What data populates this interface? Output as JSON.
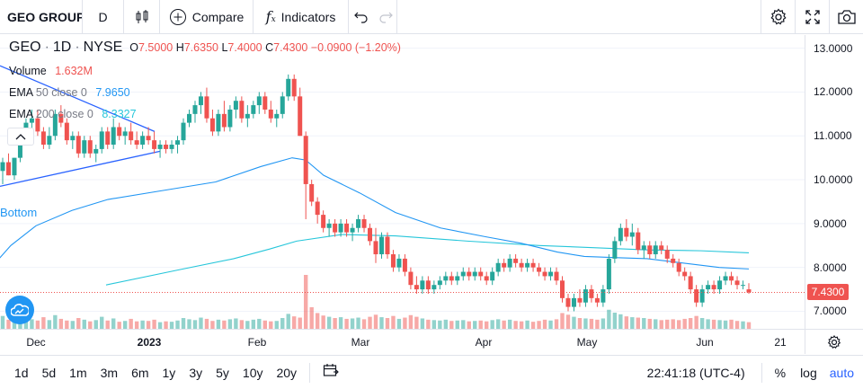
{
  "toolbar": {
    "symbol": "GEO GROUP",
    "interval": "D",
    "compare_label": "Compare",
    "indicators_label": "Indicators"
  },
  "legend": {
    "symbol": "GEO",
    "interval": "1D",
    "exchange": "NYSE",
    "open_label": "O",
    "open": "7.5000",
    "high_label": "H",
    "high": "7.6350",
    "low_label": "L",
    "low": "7.4000",
    "close_label": "C",
    "close": "7.4300",
    "change": "−0.0900 (−1.20%)",
    "volume_name": "Volume",
    "volume_value": "1.632M",
    "ema50_name": "EMA",
    "ema50_params": "50 close 0",
    "ema50_value": "7.9650",
    "ema200_name": "EMA",
    "ema200_params": "200 close 0",
    "ema200_value": "8.3327",
    "drawing_label": "Bottom"
  },
  "price_axis": {
    "ticks": [
      "13.0000",
      "12.0000",
      "11.0000",
      "10.0000",
      "9.0000",
      "8.0000",
      "7.0000"
    ],
    "last_price": "7.4300"
  },
  "time_axis": {
    "ticks": [
      {
        "label": "Dec",
        "bold": false
      },
      {
        "label": "2023",
        "bold": true
      },
      {
        "label": "Feb",
        "bold": false
      },
      {
        "label": "Mar",
        "bold": false
      },
      {
        "label": "Apr",
        "bold": false
      },
      {
        "label": "May",
        "bold": false
      },
      {
        "label": "Jun",
        "bold": false
      },
      {
        "label": "21",
        "bold": false
      }
    ]
  },
  "bottom_bar": {
    "ranges": [
      "1d",
      "5d",
      "1m",
      "3m",
      "6m",
      "1y",
      "3y",
      "5y",
      "10y",
      "20y"
    ],
    "time": "22:41:18 (UTC-4)",
    "percent_label": "%",
    "log_label": "log",
    "auto_label": "auto"
  },
  "colors": {
    "up": "#26a69a",
    "down": "#ef5350",
    "ema50": "#2196f3",
    "ema200": "#26c6da",
    "trendline": "#2962ff",
    "accent": "#2962ff"
  },
  "chart_data": {
    "type": "candlestick",
    "ylim": [
      6.6,
      13.3
    ],
    "ohlc": [
      [
        10.2,
        10.5,
        9.9,
        10.4
      ],
      [
        10.4,
        10.6,
        10.1,
        10.1
      ],
      [
        10.1,
        10.5,
        10.0,
        10.5
      ],
      [
        10.5,
        11.1,
        10.4,
        10.9
      ],
      [
        10.9,
        11.4,
        10.8,
        11.3
      ],
      [
        11.3,
        11.6,
        11.1,
        11.4
      ],
      [
        11.4,
        11.6,
        11.0,
        11.1
      ],
      [
        11.1,
        11.2,
        10.7,
        10.8
      ],
      [
        10.8,
        11.2,
        10.7,
        11.0
      ],
      [
        11.0,
        11.6,
        10.9,
        11.5
      ],
      [
        11.5,
        11.7,
        11.2,
        11.3
      ],
      [
        11.3,
        11.4,
        10.8,
        10.9
      ],
      [
        10.9,
        11.1,
        10.7,
        11.0
      ],
      [
        11.0,
        11.1,
        10.5,
        10.6
      ],
      [
        10.6,
        11.0,
        10.5,
        10.9
      ],
      [
        10.9,
        11.0,
        10.5,
        10.6
      ],
      [
        10.6,
        10.8,
        10.4,
        10.7
      ],
      [
        10.7,
        11.2,
        10.6,
        11.1
      ],
      [
        11.1,
        11.2,
        10.7,
        10.8
      ],
      [
        10.8,
        11.4,
        10.7,
        11.2
      ],
      [
        11.2,
        11.3,
        10.9,
        11.0
      ],
      [
        11.0,
        11.2,
        10.8,
        11.1
      ],
      [
        11.1,
        11.3,
        10.8,
        10.9
      ],
      [
        10.9,
        11.1,
        10.7,
        10.8
      ],
      [
        10.8,
        11.1,
        10.7,
        11.0
      ],
      [
        11.0,
        11.2,
        10.8,
        10.9
      ],
      [
        10.9,
        11.1,
        10.6,
        10.7
      ],
      [
        10.7,
        10.9,
        10.5,
        10.8
      ],
      [
        10.8,
        10.9,
        10.6,
        10.7
      ],
      [
        10.7,
        10.9,
        10.6,
        10.8
      ],
      [
        10.8,
        11.0,
        10.6,
        10.9
      ],
      [
        10.9,
        11.4,
        10.8,
        11.3
      ],
      [
        11.3,
        11.6,
        11.2,
        11.5
      ],
      [
        11.5,
        11.8,
        11.3,
        11.7
      ],
      [
        11.7,
        12.0,
        11.5,
        11.9
      ],
      [
        11.9,
        12.1,
        11.3,
        11.4
      ],
      [
        11.4,
        11.6,
        11.0,
        11.1
      ],
      [
        11.1,
        11.6,
        11.0,
        11.5
      ],
      [
        11.5,
        11.8,
        11.1,
        11.2
      ],
      [
        11.2,
        11.7,
        11.1,
        11.6
      ],
      [
        11.6,
        11.9,
        11.4,
        11.8
      ],
      [
        11.8,
        11.9,
        11.3,
        11.4
      ],
      [
        11.4,
        11.7,
        11.2,
        11.5
      ],
      [
        11.5,
        11.8,
        11.4,
        11.7
      ],
      [
        11.7,
        12.0,
        11.5,
        11.9
      ],
      [
        11.9,
        12.0,
        11.5,
        11.6
      ],
      [
        11.6,
        11.8,
        11.3,
        11.4
      ],
      [
        11.4,
        11.6,
        11.2,
        11.5
      ],
      [
        11.5,
        12.0,
        11.4,
        11.9
      ],
      [
        11.9,
        12.4,
        11.8,
        12.3
      ],
      [
        12.3,
        12.4,
        11.8,
        11.9
      ],
      [
        11.9,
        12.1,
        11.0,
        11.0
      ],
      [
        11.0,
        11.1,
        9.1,
        9.9
      ],
      [
        9.9,
        10.0,
        9.4,
        9.5
      ],
      [
        9.5,
        9.6,
        9.0,
        9.2
      ],
      [
        9.2,
        9.3,
        8.8,
        8.9
      ],
      [
        8.9,
        9.1,
        8.7,
        9.0
      ],
      [
        9.0,
        9.1,
        8.7,
        8.8
      ],
      [
        8.8,
        9.1,
        8.7,
        9.0
      ],
      [
        9.0,
        9.1,
        8.7,
        8.8
      ],
      [
        8.8,
        9.0,
        8.6,
        8.9
      ],
      [
        8.9,
        9.2,
        8.8,
        9.1
      ],
      [
        9.1,
        9.2,
        8.8,
        8.9
      ],
      [
        8.9,
        9.0,
        8.5,
        8.6
      ],
      [
        8.6,
        8.9,
        8.1,
        8.3
      ],
      [
        8.3,
        8.8,
        8.2,
        8.7
      ],
      [
        8.7,
        8.8,
        8.2,
        8.3
      ],
      [
        8.3,
        8.4,
        7.9,
        8.0
      ],
      [
        8.0,
        8.3,
        7.9,
        8.2
      ],
      [
        8.2,
        8.3,
        7.8,
        7.9
      ],
      [
        7.9,
        8.0,
        7.5,
        7.6
      ],
      [
        7.6,
        7.8,
        7.4,
        7.5
      ],
      [
        7.5,
        7.8,
        7.4,
        7.7
      ],
      [
        7.7,
        7.8,
        7.4,
        7.5
      ],
      [
        7.5,
        7.7,
        7.4,
        7.6
      ],
      [
        7.6,
        7.8,
        7.5,
        7.7
      ],
      [
        7.7,
        7.9,
        7.6,
        7.8
      ],
      [
        7.8,
        7.9,
        7.6,
        7.7
      ],
      [
        7.7,
        7.9,
        7.6,
        7.8
      ],
      [
        7.8,
        8.0,
        7.7,
        7.9
      ],
      [
        7.9,
        8.0,
        7.7,
        7.8
      ],
      [
        7.8,
        8.0,
        7.7,
        7.9
      ],
      [
        7.9,
        8.0,
        7.7,
        7.8
      ],
      [
        7.8,
        7.9,
        7.6,
        7.7
      ],
      [
        7.7,
        8.0,
        7.6,
        7.9
      ],
      [
        7.9,
        8.2,
        7.8,
        8.1
      ],
      [
        8.1,
        8.2,
        7.9,
        8.0
      ],
      [
        8.0,
        8.3,
        7.9,
        8.2
      ],
      [
        8.2,
        8.3,
        8.0,
        8.1
      ],
      [
        8.1,
        8.2,
        7.9,
        8.0
      ],
      [
        8.0,
        8.2,
        7.9,
        8.1
      ],
      [
        8.1,
        8.2,
        7.9,
        8.0
      ],
      [
        8.0,
        8.1,
        7.8,
        7.9
      ],
      [
        7.9,
        8.0,
        7.7,
        7.8
      ],
      [
        7.8,
        8.0,
        7.7,
        7.9
      ],
      [
        7.9,
        8.0,
        7.6,
        7.7
      ],
      [
        7.7,
        7.8,
        7.2,
        7.3
      ],
      [
        7.3,
        7.4,
        7.0,
        7.1
      ],
      [
        7.1,
        7.4,
        7.0,
        7.3
      ],
      [
        7.3,
        7.5,
        7.1,
        7.2
      ],
      [
        7.2,
        7.6,
        7.1,
        7.5
      ],
      [
        7.5,
        7.6,
        7.2,
        7.3
      ],
      [
        7.3,
        7.4,
        7.1,
        7.2
      ],
      [
        7.2,
        7.6,
        7.1,
        7.5
      ],
      [
        7.5,
        8.3,
        7.4,
        8.2
      ],
      [
        8.2,
        8.7,
        8.1,
        8.6
      ],
      [
        8.6,
        9.0,
        8.5,
        8.9
      ],
      [
        8.9,
        9.1,
        8.6,
        8.7
      ],
      [
        8.7,
        9.0,
        8.5,
        8.8
      ],
      [
        8.8,
        8.9,
        8.3,
        8.4
      ],
      [
        8.4,
        8.6,
        8.2,
        8.5
      ],
      [
        8.5,
        8.6,
        8.2,
        8.3
      ],
      [
        8.3,
        8.6,
        8.2,
        8.5
      ],
      [
        8.5,
        8.6,
        8.3,
        8.4
      ],
      [
        8.4,
        8.5,
        8.1,
        8.2
      ],
      [
        8.2,
        8.3,
        8.0,
        8.1
      ],
      [
        8.1,
        8.2,
        7.8,
        7.9
      ],
      [
        7.9,
        8.0,
        7.7,
        7.8
      ],
      [
        7.8,
        7.9,
        7.4,
        7.5
      ],
      [
        7.5,
        7.6,
        7.1,
        7.2
      ],
      [
        7.2,
        7.6,
        7.1,
        7.5
      ],
      [
        7.5,
        7.7,
        7.4,
        7.6
      ],
      [
        7.6,
        7.7,
        7.4,
        7.5
      ],
      [
        7.5,
        7.8,
        7.4,
        7.7
      ],
      [
        7.7,
        7.9,
        7.6,
        7.8
      ],
      [
        7.8,
        7.9,
        7.6,
        7.7
      ],
      [
        7.7,
        7.8,
        7.5,
        7.6
      ],
      [
        7.6,
        7.7,
        7.5,
        7.6
      ],
      [
        7.5,
        7.64,
        7.4,
        7.43
      ]
    ],
    "volume": [
      3.1,
      2.2,
      2.4,
      3.0,
      2.6,
      2.3,
      2.0,
      2.8,
      2.1,
      3.3,
      2.4,
      2.0,
      1.9,
      2.6,
      2.2,
      1.8,
      2.1,
      2.9,
      2.0,
      2.5,
      1.7,
      1.9,
      2.4,
      1.8,
      2.0,
      1.9,
      2.2,
      1.6,
      1.8,
      1.7,
      2.0,
      2.6,
      2.3,
      2.1,
      2.7,
      2.4,
      1.9,
      2.2,
      2.0,
      2.3,
      2.5,
      2.1,
      1.9,
      2.2,
      2.4,
      2.0,
      1.8,
      1.9,
      2.6,
      3.6,
      3.0,
      2.7,
      13.0,
      5.2,
      3.8,
      3.2,
      2.9,
      2.6,
      2.8,
      2.4,
      2.5,
      2.7,
      2.3,
      2.9,
      3.4,
      2.8,
      2.6,
      3.1,
      2.4,
      2.7,
      3.3,
      2.9,
      2.5,
      2.2,
      2.1,
      2.0,
      2.2,
      1.9,
      2.0,
      2.1,
      1.8,
      1.9,
      2.0,
      1.8,
      2.1,
      2.3,
      2.0,
      2.2,
      1.9,
      1.8,
      2.0,
      1.7,
      1.9,
      2.2,
      2.0,
      2.3,
      3.8,
      3.4,
      2.9,
      2.6,
      2.5,
      2.4,
      2.2,
      2.5,
      4.6,
      3.9,
      3.5,
      3.0,
      2.8,
      2.7,
      2.6,
      2.4,
      2.3,
      2.1,
      2.2,
      2.3,
      2.1,
      2.4,
      2.6,
      3.1,
      2.6,
      2.3,
      2.2,
      2.1,
      2.0,
      2.2,
      1.9,
      1.8,
      1.6
    ],
    "ema50": [
      [
        -1,
        8.2
      ],
      [
        12,
        8.5
      ],
      [
        40,
        8.95
      ],
      [
        80,
        9.3
      ],
      [
        120,
        9.55
      ],
      [
        180,
        9.75
      ],
      [
        240,
        9.95
      ],
      [
        290,
        10.3
      ],
      [
        325,
        10.5
      ],
      [
        340,
        10.45
      ],
      [
        360,
        10.1
      ],
      [
        400,
        9.7
      ],
      [
        440,
        9.25
      ],
      [
        490,
        8.9
      ],
      [
        540,
        8.7
      ],
      [
        580,
        8.55
      ],
      [
        620,
        8.35
      ],
      [
        650,
        8.25
      ],
      [
        690,
        8.22
      ],
      [
        720,
        8.2
      ],
      [
        760,
        8.1
      ],
      [
        800,
        8.0
      ],
      [
        833,
        7.965
      ]
    ],
    "ema200": [
      [
        118,
        7.6
      ],
      [
        200,
        7.95
      ],
      [
        260,
        8.2
      ],
      [
        300,
        8.42
      ],
      [
        330,
        8.6
      ],
      [
        380,
        8.75
      ],
      [
        440,
        8.72
      ],
      [
        520,
        8.6
      ],
      [
        600,
        8.5
      ],
      [
        660,
        8.45
      ],
      [
        720,
        8.4
      ],
      [
        780,
        8.38
      ],
      [
        833,
        8.3327
      ]
    ]
  }
}
